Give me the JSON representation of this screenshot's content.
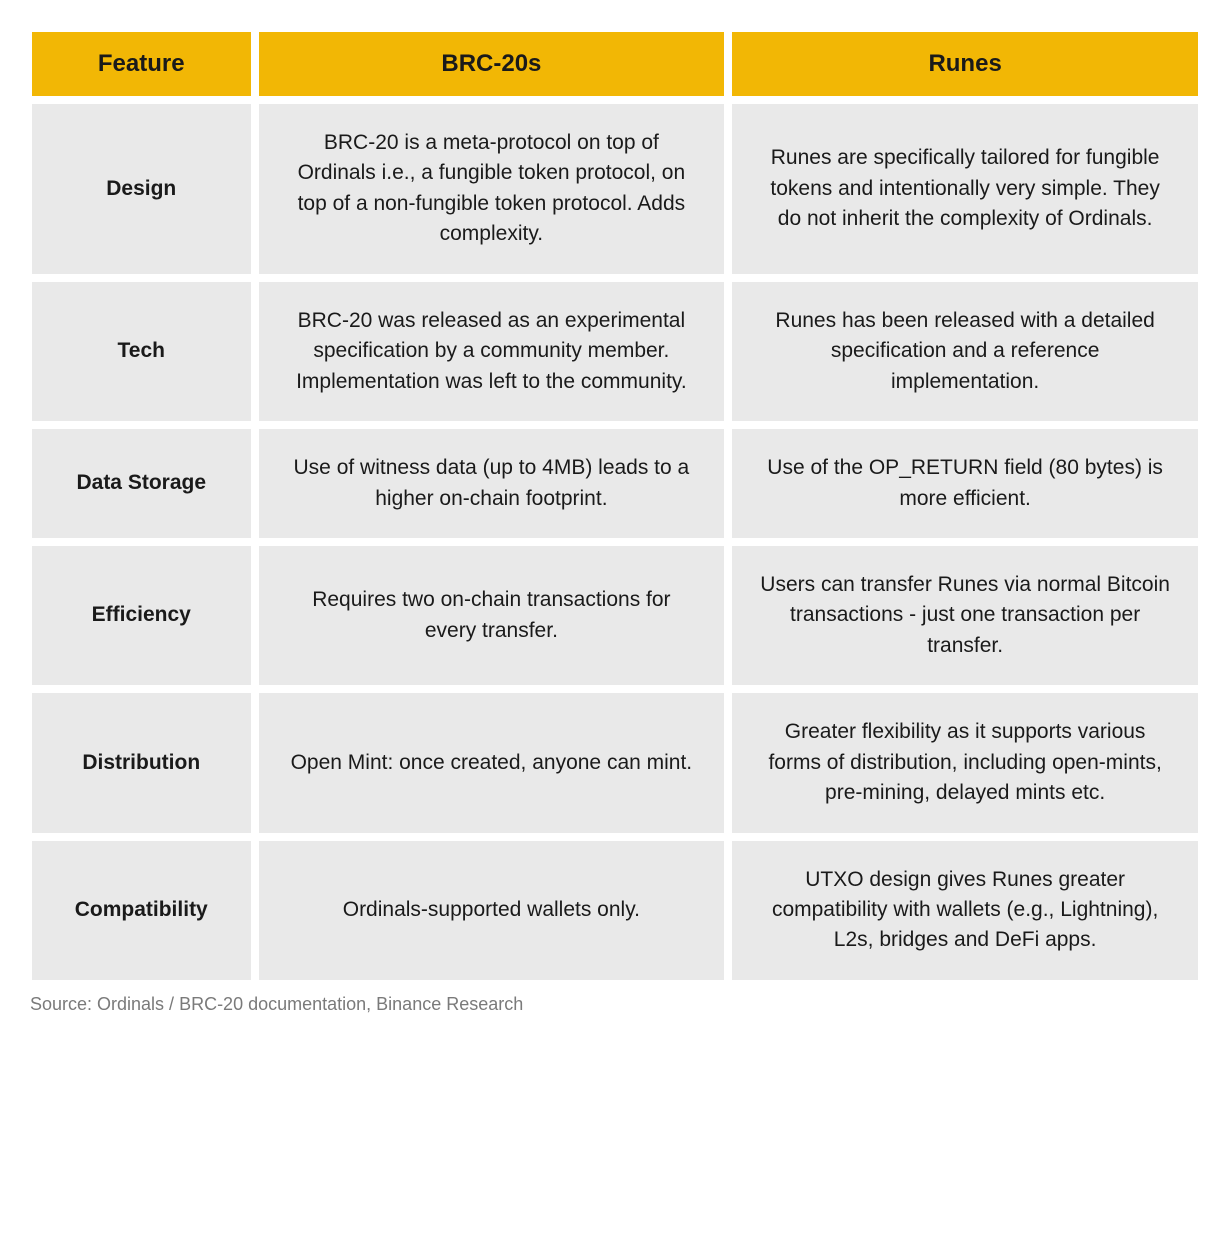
{
  "table": {
    "header_bg": "#f2b705",
    "cell_bg": "#e9e9e9",
    "header_text_color": "#1a1a1a",
    "cell_text_color": "#1a1a1a",
    "source_text_color": "#7a7a7a",
    "columns": [
      "Feature",
      "BRC-20s",
      "Runes"
    ],
    "rows": [
      {
        "feature": "Design",
        "brc20": "BRC-20 is a meta-protocol on top of Ordinals i.e., a fungible token protocol, on top of a non-fungible token protocol. Adds complexity.",
        "runes": "Runes are specifically tailored for fungible tokens and intentionally very simple. They do not inherit the complexity of Ordinals."
      },
      {
        "feature": "Tech",
        "brc20": "BRC-20 was released as an experimental specification by a community member. Implementation was left to the community.",
        "runes": "Runes has been released with a detailed specification and a reference implementation."
      },
      {
        "feature": "Data Storage",
        "brc20": "Use of witness data (up to 4MB) leads to a higher on-chain footprint.",
        "runes": "Use of the OP_RETURN field (80 bytes) is more efficient."
      },
      {
        "feature": "Efficiency",
        "brc20": "Requires two on-chain transactions for every transfer.",
        "runes": "Users can transfer Runes via normal Bitcoin transactions - just one transaction per transfer."
      },
      {
        "feature": "Distribution",
        "brc20": "Open Mint: once created, anyone can mint.",
        "runes": "Greater flexibility as it supports various forms of distribution, including open-mints, pre-mining, delayed mints etc."
      },
      {
        "feature": "Compatibility",
        "brc20": "Ordinals-supported wallets only.",
        "runes": "UTXO design gives Runes greater compatibility with wallets (e.g., Lightning), L2s, bridges and DeFi apps."
      }
    ],
    "source": "Source: Ordinals / BRC-20 documentation, Binance Research"
  }
}
